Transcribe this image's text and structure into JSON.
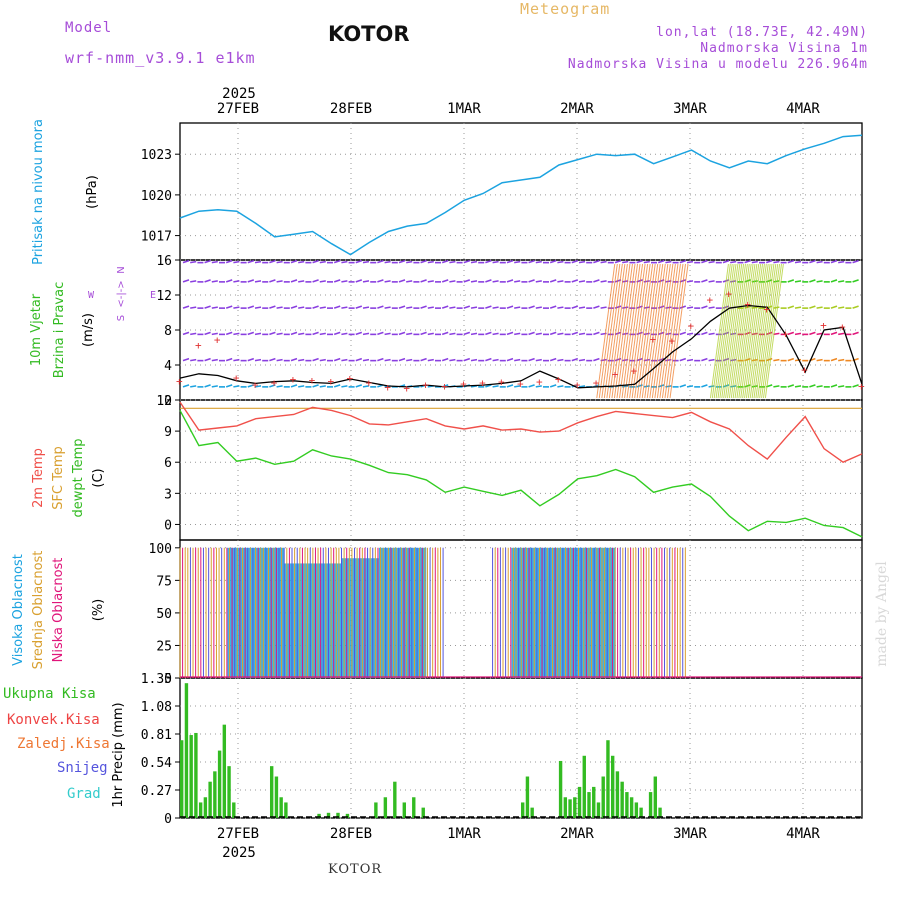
{
  "header": {
    "model_label": "Model",
    "model_name": "wrf-nmm_v3.9.1 e1km",
    "station": "KOTOR",
    "product": "Meteogram",
    "coords": "lon,lat (18.73E, 42.49N)",
    "elevation": "Nadmorska Visina 1m",
    "model_elevation": "Nadmorska Visina u modelu 226.964m",
    "credit": "made by Angel",
    "footer_station": "KOTOR"
  },
  "colors": {
    "pressure": "#1ca3e0",
    "temp2m": "#f0504a",
    "sfc_temp": "#d9a030",
    "dewpoint": "#33cc22",
    "cloud_high": "#1ca3e0",
    "cloud_mid": "#d9a030",
    "cloud_low": "#e0157a",
    "precip_total": "#33bb22",
    "precip_conv": "#ee4444",
    "precip_frozen": "#ee7733",
    "snow": "#5555dd",
    "graupel": "#33cccc",
    "purple": "#a64dd8"
  },
  "time_axis": {
    "top_year": "2025",
    "bottom_year": "2025",
    "day_labels": [
      "27FEB",
      "28FEB",
      "1MAR",
      "2MAR",
      "3MAR",
      "4MAR"
    ]
  },
  "chart_data": [
    {
      "type": "line",
      "id": "pressure",
      "ylabel": [
        "Pritisak na nivou mora",
        "(hPa)"
      ],
      "yticks": [
        1017,
        1020,
        1023
      ],
      "ylim": [
        1015.2,
        1025.3
      ],
      "xlim": [
        0,
        144
      ],
      "x": [
        0,
        4,
        8,
        12,
        16,
        20,
        24,
        28,
        32,
        36,
        40,
        44,
        48,
        52,
        56,
        60,
        64,
        68,
        72,
        76,
        80,
        84,
        88,
        92,
        96,
        100,
        104,
        108,
        112,
        116,
        120,
        124,
        128,
        132,
        136,
        140,
        144
      ],
      "series": [
        {
          "values": [
            1018.3,
            1018.8,
            1018.9,
            1018.8,
            1017.9,
            1016.9,
            1017.1,
            1017.3,
            1016.4,
            1015.6,
            1016.5,
            1017.3,
            1017.7,
            1017.9,
            1018.7,
            1019.6,
            1020.1,
            1020.9,
            1021.1,
            1021.3,
            1022.2,
            1022.6,
            1023.0,
            1022.9,
            1023.0,
            1022.3,
            1022.8,
            1023.3,
            1022.5,
            1022.0,
            1022.5,
            1022.3,
            1022.9,
            1023.4,
            1023.8,
            1024.3,
            1024.4
          ]
        }
      ]
    },
    {
      "type": "line",
      "id": "wind",
      "ylabel": [
        "10m Vjetar",
        "Brzina i Pravac",
        "(m/s)"
      ],
      "compass": {
        "w": "W",
        "e": "E",
        "n": "N",
        "s": "S",
        "arrows": "<-|->"
      },
      "yticks": [
        0,
        4,
        8,
        12,
        16
      ],
      "ytick_labels": [
        "0",
        "4",
        "8",
        "12",
        "16"
      ],
      "ylim": [
        0,
        16
      ],
      "xlim": [
        0,
        144
      ],
      "x": [
        0,
        4,
        8,
        12,
        16,
        20,
        24,
        28,
        32,
        36,
        40,
        44,
        48,
        52,
        56,
        60,
        64,
        68,
        72,
        76,
        80,
        84,
        88,
        92,
        96,
        100,
        104,
        108,
        112,
        116,
        120,
        124,
        128,
        132,
        136,
        140,
        144
      ],
      "series": [
        {
          "name": "speed",
          "values": [
            2.5,
            3.0,
            2.8,
            2.2,
            1.9,
            2.1,
            2.2,
            2.0,
            1.9,
            2.4,
            2.0,
            1.6,
            1.5,
            1.7,
            1.5,
            1.6,
            1.7,
            1.9,
            2.2,
            3.3,
            2.4,
            1.4,
            1.5,
            1.6,
            1.8,
            3.6,
            5.5,
            7.0,
            9.0,
            10.5,
            10.8,
            10.6,
            7.4,
            3.2,
            8.0,
            8.3,
            1.8
          ]
        },
        {
          "name": "gust",
          "values": [
            2.2,
            6.3,
            6.9,
            2.6,
            1.8,
            2.0,
            2.4,
            2.3,
            2.2,
            2.5,
            2.0,
            1.5,
            1.4,
            1.8,
            1.6,
            1.9,
            2.0,
            2.1,
            1.9,
            2.1,
            2.4,
            1.8,
            2.0,
            3.0,
            3.4,
            7.0,
            6.8,
            8.5,
            11.5,
            12.2,
            11.0,
            10.4,
            7.6,
            3.5,
            8.6,
            8.4,
            1.6
          ]
        }
      ]
    },
    {
      "type": "line",
      "id": "temperature",
      "ylabel": [
        "2m Temp",
        "SFC Temp",
        "dewpt Temp",
        "(C)"
      ],
      "yticks": [
        0,
        3,
        6,
        9,
        12
      ],
      "ylim": [
        -1.5,
        12
      ],
      "xlim": [
        0,
        144
      ],
      "x": [
        0,
        4,
        8,
        12,
        16,
        20,
        24,
        28,
        32,
        36,
        40,
        44,
        48,
        52,
        56,
        60,
        64,
        68,
        72,
        76,
        80,
        84,
        88,
        92,
        96,
        100,
        104,
        108,
        112,
        116,
        120,
        124,
        128,
        132,
        136,
        140,
        144
      ],
      "series": [
        {
          "name": "2m Temp",
          "values": [
            11.8,
            9.1,
            9.3,
            9.5,
            10.2,
            10.4,
            10.6,
            11.3,
            11.0,
            10.5,
            9.7,
            9.6,
            9.9,
            10.2,
            9.5,
            9.2,
            9.5,
            9.1,
            9.2,
            8.9,
            9.0,
            9.8,
            10.4,
            10.9,
            10.7,
            10.5,
            10.3,
            10.8,
            9.9,
            9.2,
            7.6,
            6.3,
            8.4,
            10.4,
            7.3,
            6.0,
            6.8
          ]
        },
        {
          "name": "SFC Temp",
          "values": [
            11.2,
            11.2,
            11.2,
            11.2,
            11.2,
            11.2,
            11.2,
            11.2,
            11.2,
            11.2,
            11.2,
            11.2,
            11.2,
            11.2,
            11.2,
            11.2,
            11.2,
            11.2,
            11.2,
            11.2,
            11.2,
            11.2,
            11.2,
            11.2,
            11.2,
            11.2,
            11.2,
            11.2,
            11.2,
            11.2,
            11.2,
            11.2,
            11.2,
            11.2,
            11.2,
            11.2,
            11.2
          ]
        },
        {
          "name": "dewpt Temp",
          "values": [
            11.0,
            7.6,
            7.9,
            6.1,
            6.4,
            5.8,
            6.1,
            7.2,
            6.6,
            6.3,
            5.7,
            5.0,
            4.8,
            4.3,
            3.1,
            3.6,
            3.2,
            2.8,
            3.3,
            1.8,
            2.9,
            4.4,
            4.7,
            5.3,
            4.6,
            3.1,
            3.6,
            3.9,
            2.7,
            0.8,
            -0.6,
            0.3,
            0.2,
            0.6,
            -0.1,
            -0.3,
            -1.2
          ]
        }
      ]
    },
    {
      "type": "bar",
      "id": "clouds",
      "ylabel": [
        "Visoka Oblacnost",
        "Srednja Oblacnost",
        "Niska Oblacnost",
        "(%)"
      ],
      "yticks": [
        0,
        25,
        50,
        75,
        100
      ],
      "ylim": [
        0,
        106
      ],
      "xlim": [
        0,
        144
      ],
      "segments": [
        {
          "x0": 0,
          "x1": 56,
          "value": 100
        },
        {
          "x0": 66,
          "x1": 107,
          "value": 100
        }
      ],
      "blue_fill": [
        {
          "x0": 10,
          "x1": 22,
          "top": 100
        },
        {
          "x0": 22,
          "x1": 34,
          "top": 88
        },
        {
          "x0": 34,
          "x1": 42,
          "top": 92
        },
        {
          "x0": 42,
          "x1": 52,
          "top": 100
        },
        {
          "x0": 70,
          "x1": 92,
          "top": 100
        }
      ]
    },
    {
      "type": "bar",
      "id": "precip",
      "ylabel": [
        "1hr Precip (mm)"
      ],
      "legend": [
        "Ukupna Kisa",
        "Konvek.Kisa",
        "Zaledj.Kisa",
        "Snijeg",
        "Grad"
      ],
      "yticks": [
        0,
        0.27,
        0.54,
        0.81,
        1.08,
        1.35
      ],
      "ytick_labels": [
        "0",
        "0.27",
        "0.54",
        "0.81",
        "1.08",
        "1.35"
      ],
      "ylim": [
        0,
        1.35
      ],
      "xlim": [
        0,
        144
      ],
      "bars": [
        {
          "x": 0,
          "v": 0.75
        },
        {
          "x": 1,
          "v": 1.3
        },
        {
          "x": 2,
          "v": 0.8
        },
        {
          "x": 3,
          "v": 0.82
        },
        {
          "x": 4,
          "v": 0.15
        },
        {
          "x": 5,
          "v": 0.2
        },
        {
          "x": 6,
          "v": 0.35
        },
        {
          "x": 7,
          "v": 0.45
        },
        {
          "x": 8,
          "v": 0.65
        },
        {
          "x": 9,
          "v": 0.9
        },
        {
          "x": 10,
          "v": 0.5
        },
        {
          "x": 11,
          "v": 0.15
        },
        {
          "x": 19,
          "v": 0.5
        },
        {
          "x": 20,
          "v": 0.4
        },
        {
          "x": 21,
          "v": 0.2
        },
        {
          "x": 22,
          "v": 0.15
        },
        {
          "x": 29,
          "v": 0.04
        },
        {
          "x": 31,
          "v": 0.05
        },
        {
          "x": 33,
          "v": 0.05
        },
        {
          "x": 35,
          "v": 0.04
        },
        {
          "x": 41,
          "v": 0.15
        },
        {
          "x": 43,
          "v": 0.2
        },
        {
          "x": 45,
          "v": 0.35
        },
        {
          "x": 47,
          "v": 0.15
        },
        {
          "x": 49,
          "v": 0.2
        },
        {
          "x": 51,
          "v": 0.1
        },
        {
          "x": 72,
          "v": 0.15
        },
        {
          "x": 73,
          "v": 0.4
        },
        {
          "x": 74,
          "v": 0.1
        },
        {
          "x": 80,
          "v": 0.55
        },
        {
          "x": 81,
          "v": 0.2
        },
        {
          "x": 82,
          "v": 0.18
        },
        {
          "x": 83,
          "v": 0.2
        },
        {
          "x": 84,
          "v": 0.3
        },
        {
          "x": 85,
          "v": 0.6
        },
        {
          "x": 86,
          "v": 0.25
        },
        {
          "x": 87,
          "v": 0.3
        },
        {
          "x": 88,
          "v": 0.15
        },
        {
          "x": 89,
          "v": 0.4
        },
        {
          "x": 90,
          "v": 0.75
        },
        {
          "x": 91,
          "v": 0.6
        },
        {
          "x": 92,
          "v": 0.45
        },
        {
          "x": 93,
          "v": 0.35
        },
        {
          "x": 94,
          "v": 0.25
        },
        {
          "x": 95,
          "v": 0.2
        },
        {
          "x": 96,
          "v": 0.15
        },
        {
          "x": 97,
          "v": 0.1
        },
        {
          "x": 99,
          "v": 0.25
        },
        {
          "x": 100,
          "v": 0.4
        },
        {
          "x": 101,
          "v": 0.1
        }
      ]
    }
  ]
}
